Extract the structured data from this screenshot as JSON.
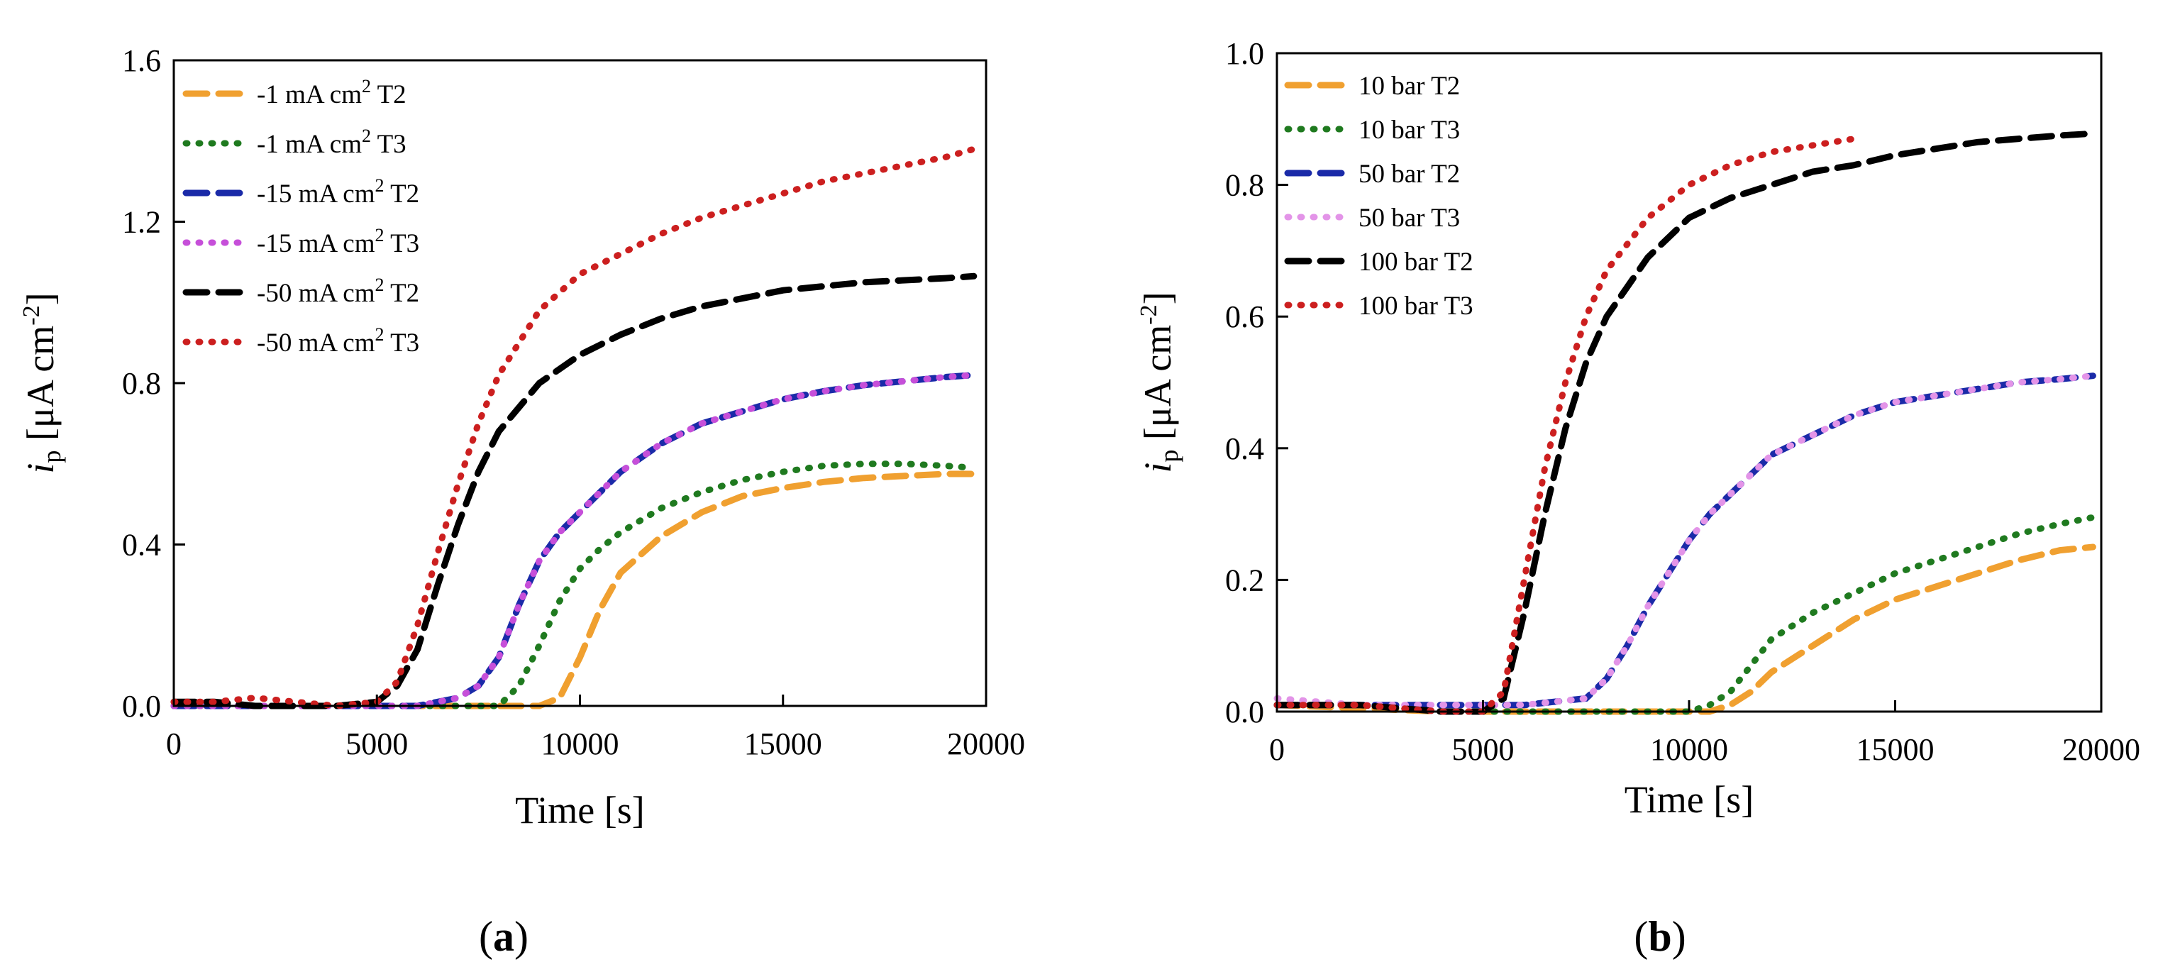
{
  "figure": {
    "panels": [
      {
        "label_open": "(",
        "label_letter": "a",
        "label_close": ")"
      },
      {
        "label_open": "(",
        "label_letter": "b",
        "label_close": ")"
      }
    ]
  },
  "chart_data": [
    {
      "type": "line",
      "panel": "a",
      "xlabel": "Time [s]",
      "ylabel": {
        "italic": "i",
        "sub": "p",
        "rest": " [μA cm",
        "sup": "-2",
        "close": "]"
      },
      "xlim": [
        0,
        20000
      ],
      "ylim": [
        0,
        1.6
      ],
      "xticks": [
        0,
        5000,
        10000,
        15000,
        20000
      ],
      "yticks": [
        0.0,
        0.4,
        0.8,
        1.2,
        1.6
      ],
      "xtick_labels": [
        "0",
        "5000",
        "10000",
        "15000",
        "20000"
      ],
      "ytick_labels": [
        "0.0",
        "0.4",
        "0.8",
        "1.2",
        "1.6"
      ],
      "legend_position": "top-left",
      "series": [
        {
          "name": "-1 mA cm² T2",
          "label": "-1 mA cm",
          "sup": "2",
          "suffix": " T2",
          "color": "#f0a030",
          "style": "dashed",
          "x": [
            0,
            1000,
            2000,
            3000,
            4000,
            5000,
            6000,
            7000,
            8000,
            9000,
            9500,
            10000,
            10500,
            11000,
            12000,
            13000,
            14000,
            15000,
            16000,
            17000,
            18000,
            19000,
            19700
          ],
          "y": [
            0.0,
            0.0,
            0.0,
            0.0,
            0.0,
            0.0,
            0.0,
            0.0,
            0.0,
            0.0,
            0.02,
            0.12,
            0.24,
            0.33,
            0.42,
            0.48,
            0.52,
            0.54,
            0.555,
            0.565,
            0.57,
            0.575,
            0.575
          ]
        },
        {
          "name": "-1 mA cm² T3",
          "label": "-1 mA cm",
          "sup": "2",
          "suffix": " T3",
          "color": "#1f7a1f",
          "style": "dotted",
          "x": [
            0,
            1000,
            2000,
            3000,
            4000,
            5000,
            6000,
            7000,
            8000,
            8500,
            9000,
            9500,
            10000,
            10500,
            11000,
            12000,
            13000,
            14000,
            15000,
            16000,
            17000,
            18000,
            19000,
            19700
          ],
          "y": [
            0.0,
            0.0,
            0.0,
            0.0,
            0.0,
            0.0,
            0.0,
            0.0,
            0.0,
            0.05,
            0.15,
            0.26,
            0.34,
            0.39,
            0.43,
            0.49,
            0.53,
            0.56,
            0.58,
            0.595,
            0.6,
            0.6,
            0.595,
            0.59
          ]
        },
        {
          "name": "-15 mA cm² T2",
          "label": "-15 mA cm",
          "sup": "2",
          "suffix": " T2",
          "color": "#1a2aa8",
          "style": "dashed",
          "x": [
            0,
            1000,
            2000,
            3000,
            4000,
            5000,
            6000,
            7000,
            7500,
            8000,
            8500,
            9000,
            9500,
            10000,
            10500,
            11000,
            12000,
            13000,
            14000,
            15000,
            16000,
            17000,
            18000,
            19000,
            19700
          ],
          "y": [
            0.0,
            0.0,
            0.0,
            0.0,
            0.0,
            0.0,
            0.0,
            0.02,
            0.05,
            0.12,
            0.25,
            0.36,
            0.43,
            0.48,
            0.53,
            0.58,
            0.65,
            0.7,
            0.73,
            0.76,
            0.78,
            0.795,
            0.805,
            0.815,
            0.82
          ]
        },
        {
          "name": "-15 mA cm² T3",
          "label": "-15 mA cm",
          "sup": "2",
          "suffix": " T3",
          "color": "#c64fd9",
          "style": "dotted",
          "x": [
            0,
            1000,
            2000,
            3000,
            4000,
            5000,
            6000,
            7000,
            7500,
            8000,
            8500,
            9000,
            9500,
            10000,
            10500,
            11000,
            12000,
            13000,
            14000,
            15000,
            16000,
            17000,
            18000,
            19000,
            19700
          ],
          "y": [
            0.0,
            0.0,
            0.0,
            0.0,
            0.0,
            0.0,
            0.0,
            0.02,
            0.05,
            0.12,
            0.25,
            0.36,
            0.43,
            0.48,
            0.53,
            0.58,
            0.65,
            0.7,
            0.73,
            0.76,
            0.78,
            0.795,
            0.805,
            0.815,
            0.82
          ]
        },
        {
          "name": "-50 mA cm² T2",
          "label": "-50 mA cm",
          "sup": "2",
          "suffix": " T2",
          "color": "#000000",
          "style": "dashed",
          "x": [
            0,
            1000,
            2000,
            3000,
            4000,
            5000,
            5500,
            6000,
            6500,
            7000,
            7500,
            8000,
            9000,
            10000,
            11000,
            12000,
            13000,
            14000,
            15000,
            16000,
            17000,
            18000,
            19000,
            19700
          ],
          "y": [
            0.01,
            0.01,
            0.0,
            0.0,
            0.0,
            0.01,
            0.05,
            0.14,
            0.3,
            0.45,
            0.58,
            0.68,
            0.8,
            0.87,
            0.92,
            0.96,
            0.99,
            1.01,
            1.03,
            1.04,
            1.05,
            1.055,
            1.06,
            1.065
          ]
        },
        {
          "name": "-50 mA cm² T3",
          "label": "-50 mA cm",
          "sup": "2",
          "suffix": " T3",
          "color": "#cc1f1f",
          "style": "dotted",
          "x": [
            0,
            1000,
            2000,
            3000,
            4000,
            5000,
            5500,
            6000,
            6500,
            7000,
            7500,
            8000,
            9000,
            10000,
            11000,
            12000,
            13000,
            14000,
            15000,
            16000,
            17000,
            18000,
            19000,
            19700
          ],
          "y": [
            0.01,
            0.01,
            0.02,
            0.01,
            0.0,
            0.01,
            0.06,
            0.2,
            0.38,
            0.55,
            0.7,
            0.82,
            0.98,
            1.07,
            1.12,
            1.17,
            1.21,
            1.24,
            1.27,
            1.3,
            1.32,
            1.34,
            1.36,
            1.38
          ]
        }
      ]
    },
    {
      "type": "line",
      "panel": "b",
      "xlabel": "Time [s]",
      "ylabel": {
        "italic": "i",
        "sub": "p",
        "rest": " [μA cm",
        "sup": "-2",
        "close": "]"
      },
      "xlim": [
        0,
        20000
      ],
      "ylim": [
        0,
        1.0
      ],
      "xticks": [
        0,
        5000,
        10000,
        15000,
        20000
      ],
      "yticks": [
        0.0,
        0.2,
        0.4,
        0.6,
        0.8,
        1.0
      ],
      "xtick_labels": [
        "0",
        "5000",
        "10000",
        "15000",
        "20000"
      ],
      "ytick_labels": [
        "0.0",
        "0.2",
        "0.4",
        "0.6",
        "0.8",
        "1.0"
      ],
      "legend_position": "top-left",
      "series": [
        {
          "name": "10 bar T2",
          "label": "10 bar T2",
          "color": "#f0a030",
          "style": "dashed",
          "x": [
            0,
            2000,
            4000,
            6000,
            8000,
            10000,
            10500,
            11000,
            11500,
            12000,
            13000,
            14000,
            15000,
            16000,
            17000,
            18000,
            19000,
            19800
          ],
          "y": [
            0.01,
            0.005,
            0.0,
            0.0,
            0.0,
            0.0,
            0.0,
            0.01,
            0.03,
            0.06,
            0.1,
            0.14,
            0.17,
            0.19,
            0.21,
            0.23,
            0.245,
            0.25
          ]
        },
        {
          "name": "10 bar T3",
          "label": "10 bar T3",
          "color": "#1f7a1f",
          "style": "dotted",
          "x": [
            0,
            2000,
            4000,
            6000,
            8000,
            10000,
            10500,
            11000,
            11500,
            12000,
            13000,
            14000,
            15000,
            16000,
            17000,
            18000,
            19000,
            19800
          ],
          "y": [
            0.01,
            0.01,
            0.0,
            0.0,
            0.0,
            0.0,
            0.01,
            0.03,
            0.07,
            0.11,
            0.15,
            0.18,
            0.21,
            0.23,
            0.25,
            0.27,
            0.285,
            0.295
          ]
        },
        {
          "name": "50 bar T2",
          "label": "50 bar T2",
          "color": "#1a2aa8",
          "style": "dashed",
          "x": [
            0,
            2000,
            4000,
            6000,
            7500,
            8000,
            8500,
            9000,
            9500,
            10000,
            10500,
            11000,
            12000,
            13000,
            14000,
            15000,
            16000,
            17000,
            18000,
            19000,
            19800
          ],
          "y": [
            0.01,
            0.01,
            0.01,
            0.01,
            0.02,
            0.05,
            0.1,
            0.16,
            0.21,
            0.26,
            0.3,
            0.33,
            0.39,
            0.42,
            0.45,
            0.47,
            0.48,
            0.49,
            0.5,
            0.505,
            0.51
          ]
        },
        {
          "name": "50 bar T3",
          "label": "50 bar T3",
          "color": "#e394e8",
          "style": "dotted",
          "x": [
            0,
            2000,
            4000,
            6000,
            7500,
            8000,
            8500,
            9000,
            9500,
            10000,
            10500,
            11000,
            12000,
            13000,
            14000,
            15000,
            16000,
            17000,
            18000,
            19000,
            19800
          ],
          "y": [
            0.02,
            0.01,
            0.01,
            0.01,
            0.02,
            0.05,
            0.1,
            0.16,
            0.21,
            0.26,
            0.3,
            0.33,
            0.39,
            0.42,
            0.45,
            0.47,
            0.48,
            0.49,
            0.5,
            0.505,
            0.51
          ]
        },
        {
          "name": "100 bar T2",
          "label": "100 bar T2",
          "color": "#000000",
          "style": "dashed",
          "x": [
            0,
            2000,
            4000,
            5000,
            5500,
            6000,
            6500,
            7000,
            7500,
            8000,
            9000,
            10000,
            11000,
            12000,
            13000,
            14000,
            15000,
            16000,
            17000,
            18000,
            19000,
            19800
          ],
          "y": [
            0.01,
            0.01,
            0.0,
            0.0,
            0.02,
            0.15,
            0.3,
            0.43,
            0.53,
            0.6,
            0.69,
            0.75,
            0.78,
            0.8,
            0.82,
            0.83,
            0.845,
            0.855,
            0.865,
            0.87,
            0.875,
            0.878
          ]
        },
        {
          "name": "100 bar T3",
          "label": "100 bar T3",
          "color": "#cc1f1f",
          "style": "dotted",
          "x": [
            0,
            2000,
            4000,
            5000,
            5500,
            6000,
            6500,
            7000,
            7500,
            8000,
            9000,
            10000,
            11000,
            12000,
            13000,
            14000
          ],
          "y": [
            0.01,
            0.01,
            0.0,
            0.0,
            0.03,
            0.2,
            0.37,
            0.5,
            0.6,
            0.67,
            0.75,
            0.8,
            0.83,
            0.85,
            0.86,
            0.87
          ]
        }
      ]
    }
  ]
}
